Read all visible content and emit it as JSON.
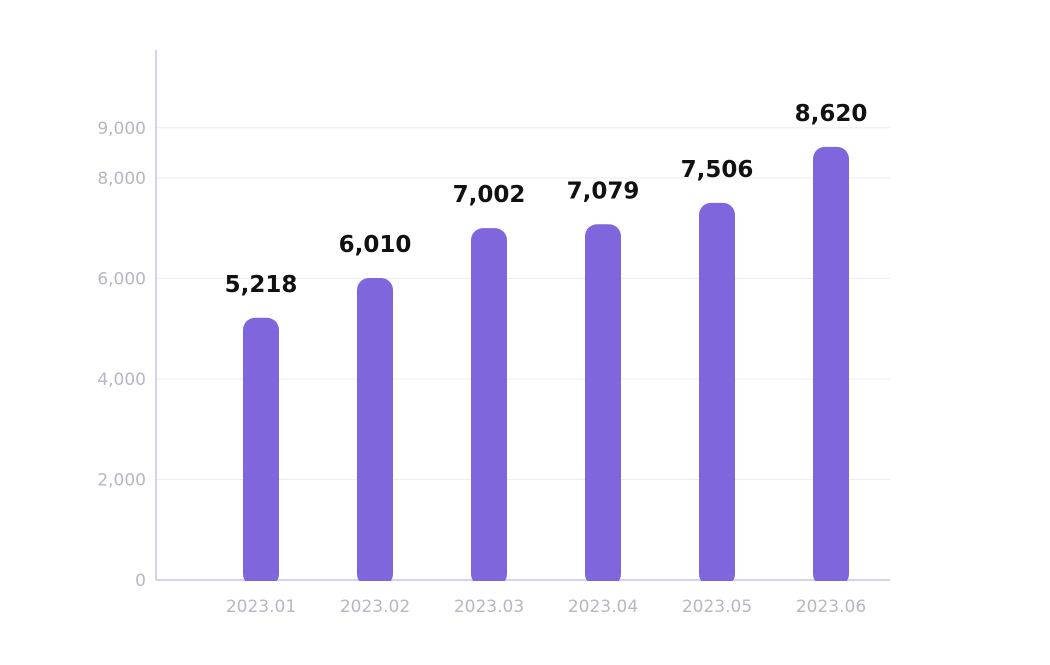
{
  "chart_data": {
    "type": "bar",
    "categories": [
      "2023.01",
      "2023.02",
      "2023.03",
      "2023.04",
      "2023.05",
      "2023.06"
    ],
    "values": [
      5218,
      6010,
      7002,
      7079,
      7506,
      8620
    ],
    "data_labels": [
      "5,218",
      "6,010",
      "7,002",
      "7,079",
      "7,506",
      "8,620"
    ],
    "y_ticks": [
      0,
      2000,
      4000,
      6000,
      8000,
      9000
    ],
    "y_tick_labels": [
      "0",
      "2,000",
      "4,000",
      "6,000",
      "8,000",
      "9,000"
    ],
    "ylim": [
      0,
      9000
    ],
    "grid": true,
    "legend": "none",
    "bar_color": "#7f66dc",
    "title": "",
    "xlabel": "",
    "ylabel": ""
  }
}
